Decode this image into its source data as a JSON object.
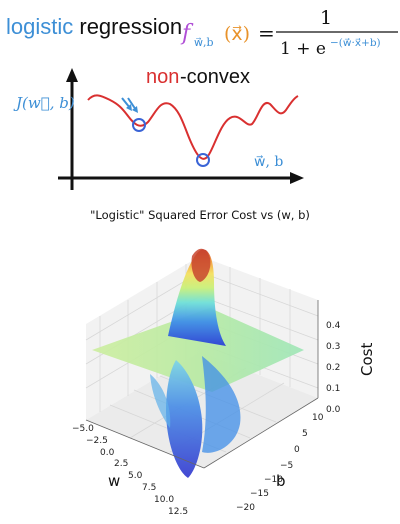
{
  "header": {
    "keyword1": "logistic",
    "keyword2": "regression",
    "formula": {
      "lhs_f": "f",
      "lhs_sub": "w⃗,b",
      "lhs_arg": "(x⃗)",
      "equals": "=",
      "numerator": "1",
      "denominator_base": "1 + e",
      "denominator_exp": "−(w⃗·x⃗+b)"
    }
  },
  "sketch": {
    "label_nonconvex_non": "non",
    "label_nonconvex_rest": "-convex",
    "y_axis_label": "J(w⃗, b)",
    "x_axis_label": "w⃗, b",
    "colors": {
      "curve": "#d93030",
      "marker": "#3a64d6",
      "arrow": "#3d8fd6",
      "non": "#d93030"
    }
  },
  "surface_plot": {
    "title": "\"Logistic\" Squared Error Cost vs (w, b)",
    "w_label": "w",
    "b_label": "b",
    "cost_label": "Cost",
    "w_ticks": [
      "−5.0",
      "−2.5",
      "0.0",
      "2.5",
      "5.0",
      "7.5",
      "10.0",
      "12.5"
    ],
    "b_ticks": [
      "10",
      "5",
      "0",
      "−5",
      "−10",
      "−15",
      "−20"
    ],
    "cost_ticks": [
      "0.0",
      "0.1",
      "0.2",
      "0.3",
      "0.4"
    ],
    "colormap": "jet"
  }
}
